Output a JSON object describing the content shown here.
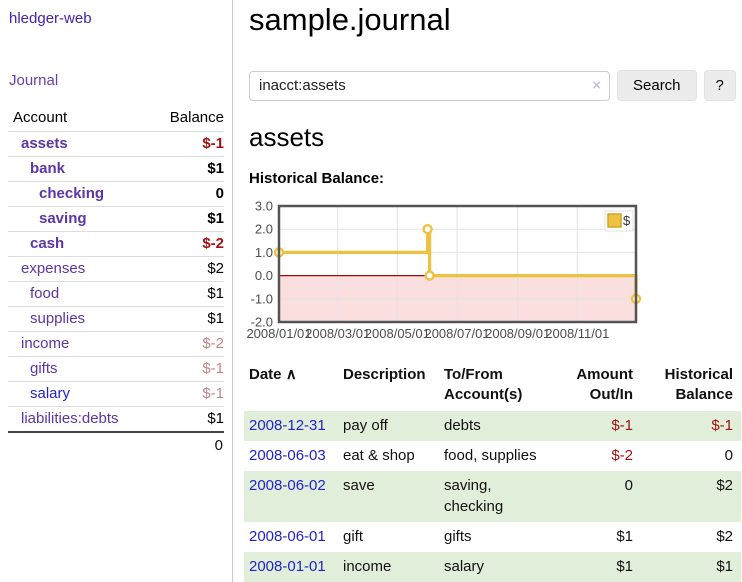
{
  "app": {
    "brand": "hledger-web",
    "nav_journal": "Journal"
  },
  "sidebar": {
    "header": {
      "account": "Account",
      "balance": "Balance"
    },
    "accounts": [
      {
        "name": "assets",
        "balance": "$-1",
        "level": 1,
        "bold": true,
        "bal_class": "neg"
      },
      {
        "name": "bank",
        "balance": "$1",
        "level": 2,
        "bold": true,
        "bal_class": ""
      },
      {
        "name": "checking",
        "balance": "0",
        "level": 3,
        "bold": true,
        "bal_class": ""
      },
      {
        "name": "saving",
        "balance": "$1",
        "level": 3,
        "bold": true,
        "bal_class": ""
      },
      {
        "name": "cash",
        "balance": "$-2",
        "level": 2,
        "bold": true,
        "bal_class": "neg"
      },
      {
        "name": "expenses",
        "balance": "$2",
        "level": 1,
        "bold": false,
        "bal_class": ""
      },
      {
        "name": "food",
        "balance": "$1",
        "level": 2,
        "bold": false,
        "bal_class": ""
      },
      {
        "name": "supplies",
        "balance": "$1",
        "level": 2,
        "bold": false,
        "bal_class": ""
      },
      {
        "name": "income",
        "balance": "$-2",
        "level": 1,
        "bold": false,
        "bal_class": "faded"
      },
      {
        "name": "gifts",
        "balance": "$-1",
        "level": 2,
        "bold": false,
        "bal_class": "faded"
      },
      {
        "name": "salary",
        "balance": "$-1",
        "level": 2,
        "bold": false,
        "bal_class": "faded",
        "link_class": "blue"
      },
      {
        "name": "liabilities:debts",
        "balance": "$1",
        "level": 1,
        "bold": false,
        "bal_class": ""
      }
    ],
    "total": "0"
  },
  "main": {
    "title": "sample.journal",
    "search": {
      "value": "inacct:assets",
      "clear_icon": "×",
      "search_label": "Search",
      "help_label": "?"
    },
    "account_heading": "assets"
  },
  "chart_data": {
    "type": "line",
    "title": "Historical Balance:",
    "legend": {
      "label": "$",
      "position": "top-right"
    },
    "line_color": "#edc240",
    "marker": {
      "fill": "#ffffff",
      "stroke": "#edc240"
    },
    "negative_region_color": "#fbdede",
    "zero_line_color": "#9c0b0b",
    "grid_color": "#e3e3e3",
    "border_color": "#545454",
    "x_range": [
      "2008-01-01",
      "2008-12-31"
    ],
    "y_range": [
      -2.0,
      3.0
    ],
    "yticks": [
      {
        "v": 3,
        "label": "3.0"
      },
      {
        "v": 2,
        "label": "2.0"
      },
      {
        "v": 1,
        "label": "1.0"
      },
      {
        "v": 0,
        "label": "0.0"
      },
      {
        "v": -1,
        "label": "-1.0"
      },
      {
        "v": -2,
        "label": "-2.0"
      }
    ],
    "xticks": [
      {
        "date": "2008-01-01",
        "label": "2008/01/01"
      },
      {
        "date": "2008-03-01",
        "label": "2008/03/01"
      },
      {
        "date": "2008-05-01",
        "label": "2008/05/01"
      },
      {
        "date": "2008-07-01",
        "label": "2008/07/01"
      },
      {
        "date": "2008-09-01",
        "label": "2008/09/01"
      },
      {
        "date": "2008-11-01",
        "label": "2008/11/01"
      }
    ],
    "series": [
      {
        "name": "$",
        "step": true,
        "points": [
          {
            "date": "2008-01-01",
            "value": 1
          },
          {
            "date": "2008-06-01",
            "value": 2
          },
          {
            "date": "2008-06-03",
            "value": 0
          },
          {
            "date": "2008-12-31",
            "value": -1
          }
        ]
      }
    ]
  },
  "register": {
    "headers": {
      "date": "Date",
      "sort_arrow": "∧",
      "description": "Description",
      "accounts": "To/From\nAccount(s)",
      "amount": "Amount\nOut/In",
      "balance": "Historical\nBalance"
    },
    "rows": [
      {
        "date": "2008-12-31",
        "description": "pay off",
        "accounts": "debts",
        "amount": "$-1",
        "amount_class": "neg",
        "balance": "$-1",
        "balance_class": "neg",
        "green": true
      },
      {
        "date": "2008-06-03",
        "description": "eat & shop",
        "accounts": "food, supplies",
        "amount": "$-2",
        "amount_class": "neg",
        "balance": "0",
        "balance_class": "",
        "green": false
      },
      {
        "date": "2008-06-02",
        "description": "save",
        "accounts": "saving, checking",
        "amount": "0",
        "amount_class": "",
        "balance": "$2",
        "balance_class": "",
        "green": true
      },
      {
        "date": "2008-06-01",
        "description": "gift",
        "accounts": "gifts",
        "amount": "$1",
        "amount_class": "",
        "balance": "$2",
        "balance_class": "",
        "green": false
      },
      {
        "date": "2008-01-01",
        "description": "income",
        "accounts": "salary",
        "amount": "$1",
        "amount_class": "",
        "balance": "$1",
        "balance_class": "",
        "green": true
      }
    ]
  }
}
